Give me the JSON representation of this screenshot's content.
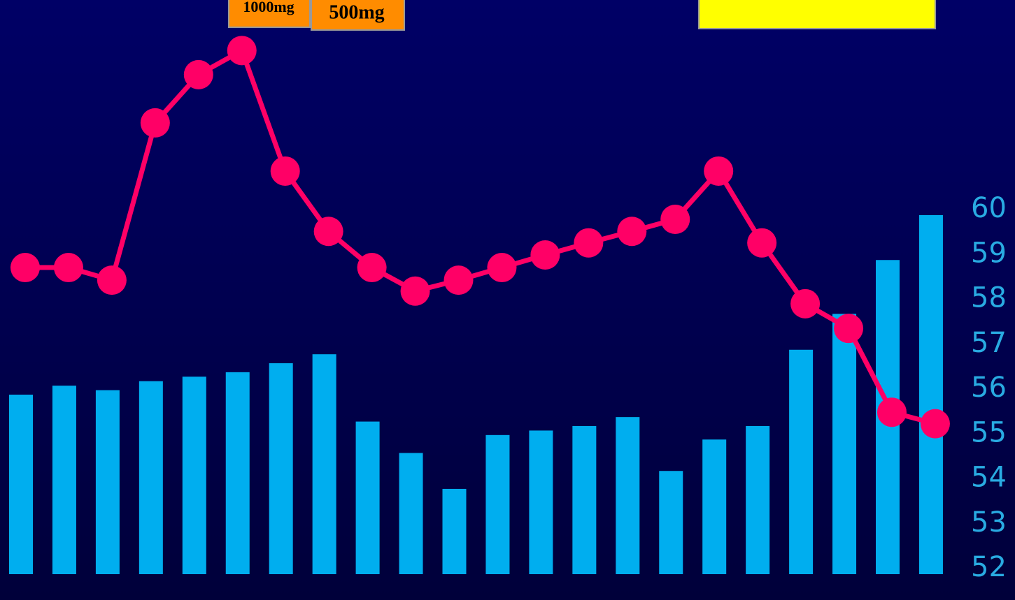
{
  "chart_data": {
    "type": "bar",
    "categories": [
      null,
      null,
      null,
      null,
      null,
      null,
      null,
      null,
      null,
      null,
      null,
      null,
      null,
      null,
      null,
      null,
      null,
      null,
      null,
      null,
      null,
      null
    ],
    "series": [
      {
        "color": "#00aeef",
        "axis": "y",
        "type": "bar",
        "values": [
          56.0,
          56.2,
          56.1,
          56.3,
          56.4,
          56.5,
          56.7,
          56.9,
          55.4,
          54.7,
          53.9,
          55.1,
          55.2,
          55.3,
          55.5,
          54.3,
          55.0,
          55.3,
          57.0,
          57.8,
          59.0,
          60.0
        ]
      },
      {
        "color": "#ff0066",
        "axis": "y2",
        "type": "line",
        "values": [
          53.4,
          53.4,
          51.2,
          78.6,
          87.0,
          91.2,
          70.2,
          59.7,
          53.4,
          49.3,
          51.2,
          53.4,
          55.6,
          57.7,
          59.7,
          61.8,
          70.2,
          57.7,
          47.1,
          42.8,
          28.2,
          26.2
        ]
      }
    ],
    "ylim": [
      52,
      60
    ],
    "yticks": [
      60,
      59,
      58,
      57,
      56,
      55,
      54,
      53,
      52
    ],
    "y2lim": [
      0,
      100
    ],
    "annotations": [
      "1000mg",
      "500mg"
    ]
  }
}
